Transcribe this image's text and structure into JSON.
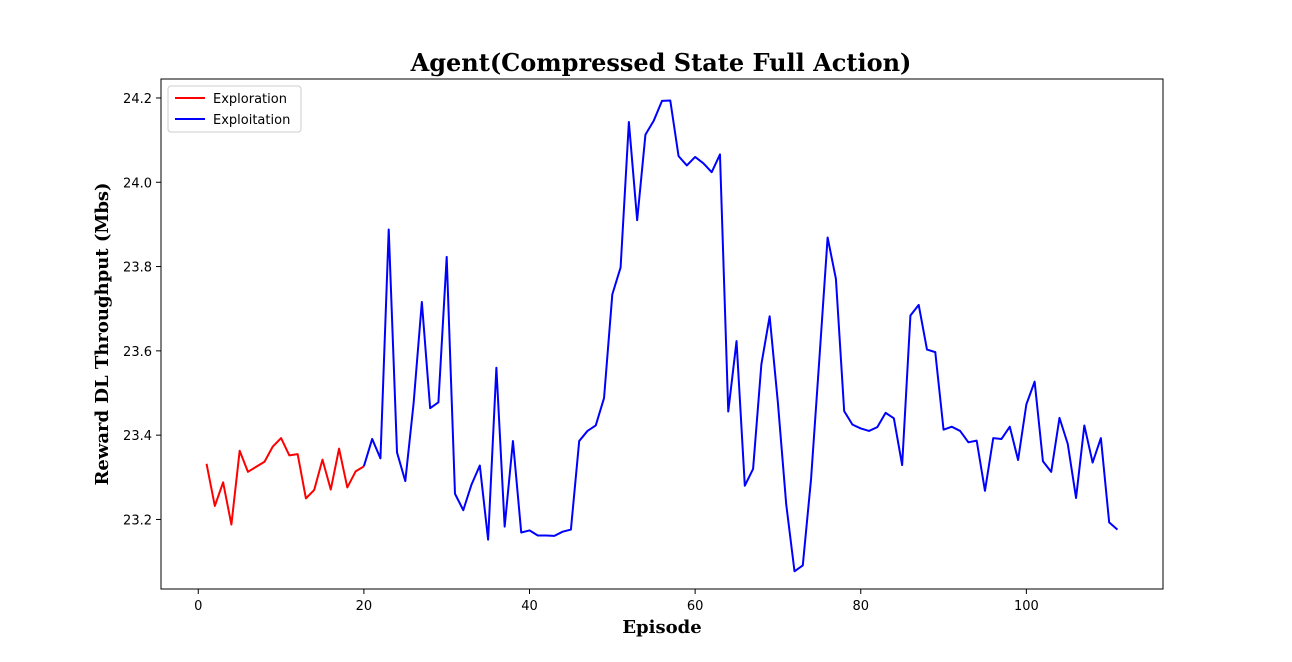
{
  "chart_data": {
    "type": "line",
    "title": "Agent(Compressed State Full Action)",
    "xlabel": "Episode",
    "ylabel": "Reward DL Throughput (Mbs)",
    "xlim": [
      -4.5,
      116.5
    ],
    "ylim": [
      23.035,
      24.245
    ],
    "xticks": [
      0,
      20,
      40,
      60,
      80,
      100
    ],
    "yticks": [
      23.2,
      23.4,
      23.6,
      23.8,
      24.0,
      24.2
    ],
    "xtick_labels": [
      "0",
      "20",
      "40",
      "60",
      "80",
      "100"
    ],
    "ytick_labels": [
      "23.2",
      "23.4",
      "23.6",
      "23.8",
      "24.0",
      "24.2"
    ],
    "grid": false,
    "legend": "top-left",
    "series": [
      {
        "name": "Exploration",
        "color": "#ff0000",
        "x": [
          1,
          2,
          3,
          4,
          5,
          6,
          7,
          8,
          9,
          10,
          11,
          12,
          13,
          14,
          15,
          16,
          17,
          18,
          19,
          20
        ],
        "y": [
          23.332,
          23.232,
          23.288,
          23.188,
          23.363,
          23.313,
          23.325,
          23.337,
          23.373,
          23.393,
          23.352,
          23.355,
          23.25,
          23.27,
          23.342,
          23.271,
          23.368,
          23.276,
          23.314,
          23.326
        ]
      },
      {
        "name": "Exploitation",
        "color": "#0000ff",
        "x": [
          20,
          21,
          22,
          23,
          24,
          25,
          26,
          27,
          28,
          29,
          30,
          31,
          32,
          33,
          34,
          35,
          36,
          37,
          38,
          39,
          40,
          41,
          42,
          43,
          44,
          45,
          46,
          47,
          48,
          49,
          50,
          51,
          52,
          53,
          54,
          55,
          56,
          57,
          58,
          59,
          60,
          61,
          62,
          63,
          64,
          65,
          66,
          67,
          68,
          69,
          70,
          71,
          72,
          73,
          74,
          75,
          76,
          77,
          78,
          79,
          80,
          81,
          82,
          83,
          84,
          85,
          86,
          87,
          88,
          89,
          90,
          91,
          92,
          93,
          94,
          95,
          96,
          97,
          98,
          99,
          100,
          101,
          102,
          103,
          104,
          105,
          106,
          107,
          108,
          109,
          110,
          111
        ],
        "y": [
          23.326,
          23.391,
          23.345,
          23.888,
          23.359,
          23.291,
          23.475,
          23.716,
          23.464,
          23.478,
          23.823,
          23.261,
          23.222,
          23.283,
          23.328,
          23.152,
          23.56,
          23.183,
          23.386,
          23.169,
          23.174,
          23.162,
          23.162,
          23.161,
          23.171,
          23.176,
          23.386,
          23.41,
          23.423,
          23.488,
          23.734,
          23.798,
          24.143,
          23.91,
          24.113,
          24.146,
          24.193,
          24.194,
          24.062,
          24.04,
          24.06,
          24.045,
          24.024,
          24.066,
          23.456,
          23.623,
          23.28,
          23.32,
          23.568,
          23.682,
          23.476,
          23.236,
          23.077,
          23.091,
          23.296,
          23.58,
          23.869,
          23.771,
          23.457,
          23.425,
          23.416,
          23.41,
          23.419,
          23.453,
          23.44,
          23.329,
          23.684,
          23.709,
          23.603,
          23.597,
          23.413,
          23.42,
          23.41,
          23.383,
          23.387,
          23.268,
          23.393,
          23.391,
          23.42,
          23.341,
          23.473,
          23.527,
          23.338,
          23.313,
          23.441,
          23.379,
          23.251,
          23.423,
          23.335,
          23.393,
          23.193,
          23.176
        ]
      }
    ]
  }
}
